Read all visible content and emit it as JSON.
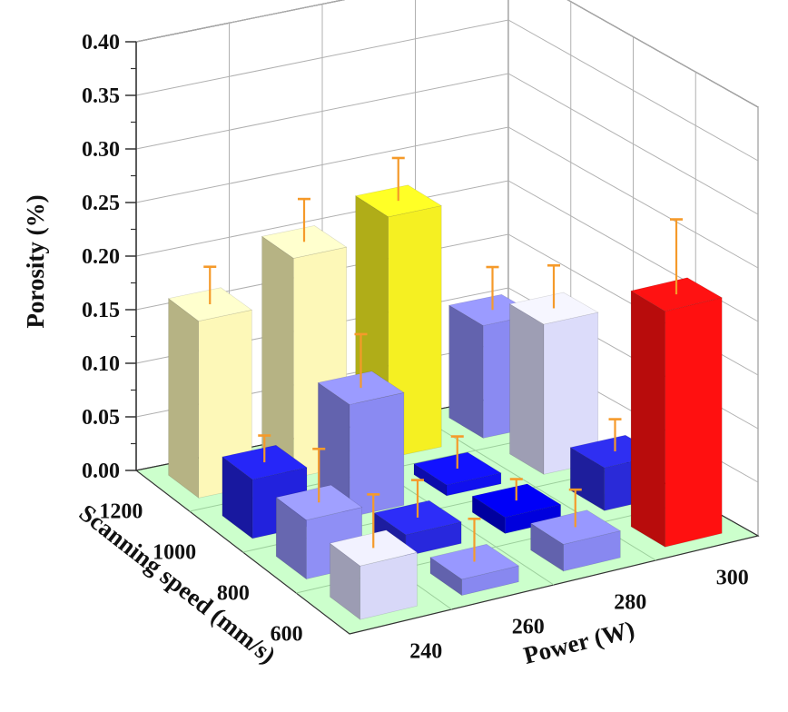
{
  "chart_data": {
    "type": "bar3d",
    "title": "",
    "xlabel": "Power (W)",
    "ylabel": "Scanning speed (mm/s)",
    "zlabel": "Porosity (%)",
    "x_categories": [
      "240",
      "260",
      "280",
      "300"
    ],
    "y_categories": [
      "600",
      "800",
      "1000",
      "1200"
    ],
    "z_ticks": [
      "0.00",
      "0.05",
      "0.10",
      "0.15",
      "0.20",
      "0.25",
      "0.30",
      "0.35",
      "0.40"
    ],
    "zlim": [
      0,
      0.4
    ],
    "bars": [
      {
        "power": "240",
        "speed": "1200",
        "value": 0.165,
        "error": 0.035,
        "color": "#fdf8b8"
      },
      {
        "power": "240",
        "speed": "1000",
        "value": 0.055,
        "error": 0.025,
        "color": "#2222dd"
      },
      {
        "power": "240",
        "speed": "800",
        "value": 0.055,
        "error": 0.05,
        "color": "#8f8ff5"
      },
      {
        "power": "240",
        "speed": "600",
        "value": 0.05,
        "error": 0.05,
        "color": "#d8d8f8"
      },
      {
        "power": "260",
        "speed": "1200",
        "value": 0.205,
        "error": 0.04,
        "color": "#fdf8b8"
      },
      {
        "power": "260",
        "speed": "1000",
        "value": 0.105,
        "error": 0.05,
        "color": "#8a8af2"
      },
      {
        "power": "260",
        "speed": "800",
        "value": 0.02,
        "error": 0.035,
        "color": "#2828dd"
      },
      {
        "power": "260",
        "speed": "600",
        "value": 0.015,
        "error": 0.04,
        "color": "#8888f0"
      },
      {
        "power": "280",
        "speed": "1200",
        "value": 0.225,
        "error": 0.04,
        "color": "#f5f022"
      },
      {
        "power": "280",
        "speed": "1000",
        "value": 0.01,
        "error": 0.03,
        "color": "#1010ee"
      },
      {
        "power": "280",
        "speed": "800",
        "value": 0.015,
        "error": 0.02,
        "color": "#0000dd"
      },
      {
        "power": "280",
        "speed": "600",
        "value": 0.025,
        "error": 0.035,
        "color": "#8888f0"
      },
      {
        "power": "300",
        "speed": "1200",
        "value": 0.105,
        "error": 0.04,
        "color": "#8a8af2"
      },
      {
        "power": "300",
        "speed": "1000",
        "value": 0.14,
        "error": 0.04,
        "color": "#dcdcfa"
      },
      {
        "power": "300",
        "speed": "800",
        "value": 0.04,
        "error": 0.03,
        "color": "#2a2ad8"
      },
      {
        "power": "300",
        "speed": "600",
        "value": 0.22,
        "error": 0.07,
        "color": "#ff1010"
      }
    ],
    "colors": {
      "floor": "#ccffcc",
      "error_bar": "#f59a2a",
      "grid": "#b0b0b0",
      "axis": "#333333"
    }
  }
}
